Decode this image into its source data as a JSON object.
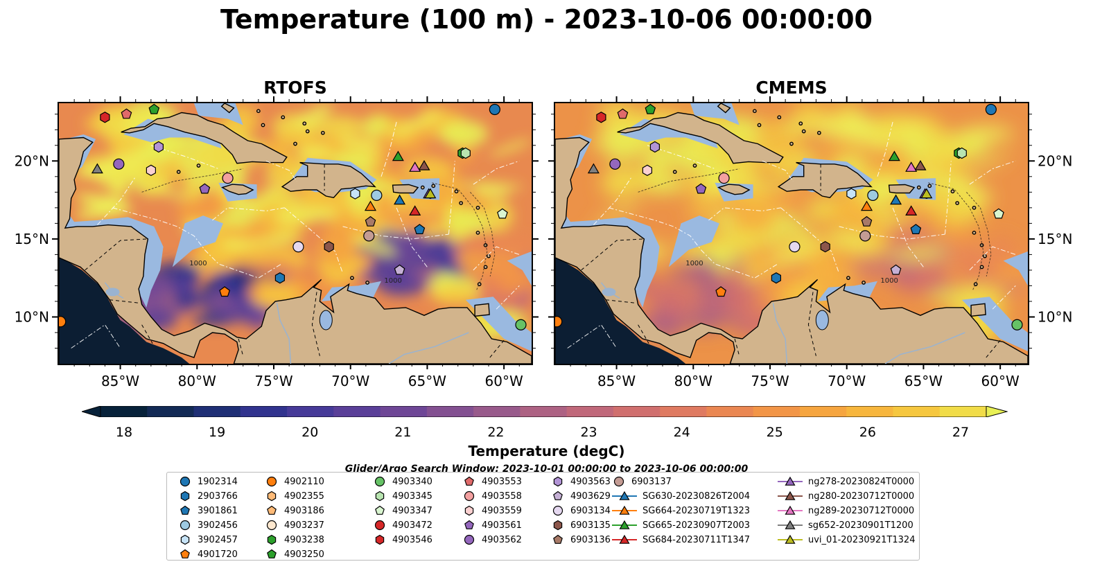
{
  "title": "Temperature (100 m) - 2023-10-06 00:00:00",
  "panels": [
    {
      "name": "RTOFS",
      "style": "rtofs"
    },
    {
      "name": "CMEMS",
      "style": "cmems"
    }
  ],
  "map_axes": {
    "lon_ticks": [
      "85°W",
      "80°W",
      "75°W",
      "70°W",
      "65°W",
      "60°W"
    ],
    "lat_ticks": [
      "20°N",
      "15°N",
      "10°N"
    ],
    "contour_labels": [
      "1000",
      "1000"
    ]
  },
  "colorbar": {
    "title": "Temperature (degC)",
    "ticks": [
      "18",
      "19",
      "20",
      "21",
      "22",
      "23",
      "24",
      "25",
      "26",
      "27"
    ],
    "min": 18,
    "max": 27,
    "extend": "both",
    "colors": [
      "#07223a",
      "#132a55",
      "#1f2f75",
      "#31338e",
      "#463a98",
      "#5a3f98",
      "#6e4696",
      "#835091",
      "#985a8b",
      "#ad6283",
      "#c0687a",
      "#d06f6e",
      "#df7a61",
      "#ea8752",
      "#f29547",
      "#f6a53f",
      "#f7b63d",
      "#f6c73f",
      "#f1dc48",
      "#e8f055"
    ]
  },
  "search_window": "Glider/Argo Search Window: 2023-10-01 00:00:00 to 2023-10-06 00:00:00",
  "legend": {
    "columns": [
      [
        {
          "label": "1902314",
          "marker": "circle",
          "color": "#1f77b4"
        },
        {
          "label": "2903766",
          "marker": "hexagon",
          "color": "#1f77b4"
        },
        {
          "label": "3901861",
          "marker": "pentagon",
          "color": "#1f77b4"
        },
        {
          "label": "3902456",
          "marker": "circle",
          "color": "#9ecae1"
        },
        {
          "label": "3902457",
          "marker": "hexagon",
          "color": "#c6e3f7"
        },
        {
          "label": "4901720",
          "marker": "pentagon",
          "color": "#ff7f0e"
        }
      ],
      [
        {
          "label": "4902110",
          "marker": "circle",
          "color": "#ff7f0e"
        },
        {
          "label": "4902355",
          "marker": "hexagon",
          "color": "#ffbb78"
        },
        {
          "label": "4903186",
          "marker": "pentagon",
          "color": "#ffbb78"
        },
        {
          "label": "4903237",
          "marker": "circle",
          "color": "#fde8cf"
        },
        {
          "label": "4903238",
          "marker": "hexagon",
          "color": "#2ca02c"
        },
        {
          "label": "4903250",
          "marker": "pentagon",
          "color": "#2ca02c"
        }
      ],
      [
        {
          "label": "4903340",
          "marker": "circle",
          "color": "#66c266"
        },
        {
          "label": "4903345",
          "marker": "hexagon",
          "color": "#b8e4b0"
        },
        {
          "label": "4903347",
          "marker": "pentagon",
          "color": "#d9f5d0"
        },
        {
          "label": "4903472",
          "marker": "circle",
          "color": "#d62728"
        },
        {
          "label": "4903546",
          "marker": "hexagon",
          "color": "#d62728"
        }
      ],
      [
        {
          "label": "4903553",
          "marker": "pentagon",
          "color": "#e06a6a"
        },
        {
          "label": "4903558",
          "marker": "circle",
          "color": "#f3a0a0"
        },
        {
          "label": "4903559",
          "marker": "hexagon",
          "color": "#fbd0d0"
        },
        {
          "label": "4903561",
          "marker": "pentagon",
          "color": "#9467bd"
        },
        {
          "label": "4903562",
          "marker": "circle",
          "color": "#9467bd"
        }
      ],
      [
        {
          "label": "4903563",
          "marker": "hexagon",
          "color": "#b294d6"
        },
        {
          "label": "4903629",
          "marker": "pentagon",
          "color": "#c5b0d5"
        },
        {
          "label": "6903134",
          "marker": "circle",
          "color": "#e5d8f0"
        },
        {
          "label": "6903135",
          "marker": "hexagon",
          "color": "#8c564b"
        },
        {
          "label": "6903136",
          "marker": "pentagon",
          "color": "#a87a68"
        }
      ],
      [
        {
          "label": "6903137",
          "marker": "circle",
          "color": "#c49c94"
        },
        {
          "label": "SG630-20230826T2004",
          "marker": "triangle-line",
          "color": "#1f77b4"
        },
        {
          "label": "SG664-20230719T1323",
          "marker": "triangle-line",
          "color": "#ff7f0e"
        },
        {
          "label": "SG665-20230907T2003",
          "marker": "triangle-line",
          "color": "#2ca02c"
        },
        {
          "label": "SG684-20230711T1347",
          "marker": "triangle-line",
          "color": "#d62728"
        }
      ],
      [
        {
          "label": "ng278-20230824T0000",
          "marker": "triangle-line",
          "color": "#9467bd"
        },
        {
          "label": "ng280-20230712T0000",
          "marker": "triangle-line",
          "color": "#8c564b"
        },
        {
          "label": "ng289-20230712T0000",
          "marker": "triangle-line",
          "color": "#e377c2"
        },
        {
          "label": "sg652-20230901T1200",
          "marker": "triangle-line",
          "color": "#7f7f7f"
        },
        {
          "label": "uvi_01-20230921T1324",
          "marker": "triangle-line",
          "color": "#bcbd22"
        }
      ]
    ]
  },
  "observations": [
    {
      "label": "1902314",
      "lon": -60.6,
      "lat": 23.3
    },
    {
      "label": "2903766",
      "lon": -74.6,
      "lat": 12.5
    },
    {
      "label": "3901861",
      "lon": -65.5,
      "lat": 15.6
    },
    {
      "label": "3902456",
      "lon": -68.3,
      "lat": 17.8
    },
    {
      "label": "3902457",
      "lon": -69.7,
      "lat": 17.9
    },
    {
      "label": "4901720",
      "lon": -78.2,
      "lat": 11.6
    },
    {
      "label": "4903238",
      "lon": -62.7,
      "lat": 20.5
    },
    {
      "label": "4903250",
      "lon": -82.8,
      "lat": 23.3
    },
    {
      "label": "4903340",
      "lon": -58.9,
      "lat": 9.5
    },
    {
      "label": "4903345",
      "lon": -62.5,
      "lat": 20.5
    },
    {
      "label": "4903347",
      "lon": -60.1,
      "lat": 16.6
    },
    {
      "label": "4903553",
      "lon": -84.6,
      "lat": 23.0
    },
    {
      "label": "4903558",
      "lon": -78.0,
      "lat": 18.9
    },
    {
      "label": "4903559",
      "lon": -83.0,
      "lat": 19.4
    },
    {
      "label": "4903561",
      "lon": -79.5,
      "lat": 18.2
    },
    {
      "label": "4903562",
      "lon": -85.1,
      "lat": 19.8
    },
    {
      "label": "4903563",
      "lon": -82.5,
      "lat": 20.9
    },
    {
      "label": "4903629",
      "lon": -66.8,
      "lat": 13.0
    },
    {
      "label": "6903134",
      "lon": -73.4,
      "lat": 14.5
    },
    {
      "label": "6903135",
      "lon": -71.4,
      "lat": 14.5
    },
    {
      "label": "6903136",
      "lon": -68.7,
      "lat": 16.1
    },
    {
      "label": "6903137",
      "lon": -68.8,
      "lat": 15.2
    },
    {
      "label": "4902110",
      "lon": -88.9,
      "lat": 9.7
    },
    {
      "label": "4903546",
      "lon": -86.0,
      "lat": 22.8
    },
    {
      "label": "SG630-20230826T2004",
      "lon": -66.8,
      "lat": 17.5
    },
    {
      "label": "SG664-20230719T1323",
      "lon": -68.7,
      "lat": 17.1
    },
    {
      "label": "SG665-20230907T2003",
      "lon": -66.9,
      "lat": 20.3
    },
    {
      "label": "SG684-20230711T1347",
      "lon": -65.8,
      "lat": 16.8
    },
    {
      "label": "ng278-20230824T0000",
      "lon": -64.9,
      "lat": 17.9
    },
    {
      "label": "ng280-20230712T0000",
      "lon": -65.2,
      "lat": 19.7
    },
    {
      "label": "ng289-20230712T0000",
      "lon": -65.8,
      "lat": 19.6
    },
    {
      "label": "sg652-20230901T1200",
      "lon": -86.5,
      "lat": 19.5
    },
    {
      "label": "uvi_01-20230921T1324",
      "lon": -64.8,
      "lat": 17.9
    }
  ],
  "colors": {
    "land": "#d2b48c",
    "shelf": "#9ab9e0",
    "pacific": "#0c1e33",
    "rivers": "#9ab3d0"
  }
}
